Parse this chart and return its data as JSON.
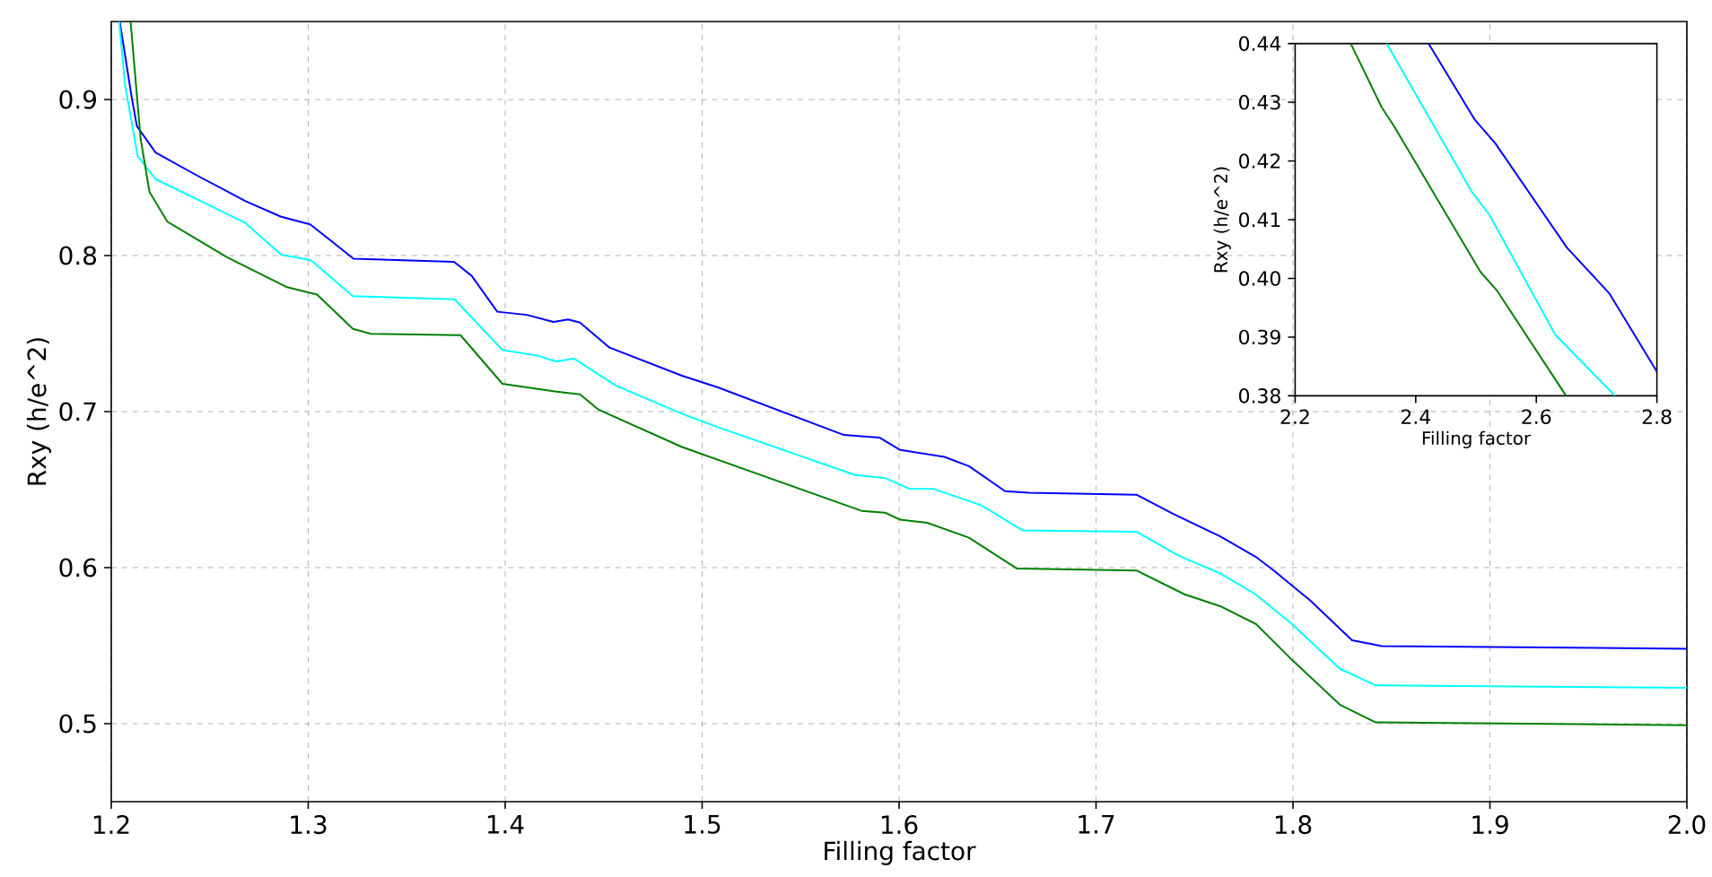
{
  "chart_data": [
    {
      "type": "line",
      "xlabel": "Filling factor",
      "ylabel": "Rxy (h/e^2)",
      "xlim": [
        1.2,
        2.0
      ],
      "ylim": [
        0.45,
        0.95
      ],
      "xticks": [
        1.2,
        1.3,
        1.4,
        1.5,
        1.6,
        1.7,
        1.8,
        1.9,
        {
          "value": 2.0,
          "label": "2.0"
        }
      ],
      "yticks": [
        0.5,
        0.6,
        0.7,
        0.8,
        0.9
      ],
      "grid": true,
      "series": [
        {
          "color": "#0000ff",
          "x": [
            1.2043,
            1.2103,
            1.213,
            1.2225,
            1.244,
            1.268,
            1.286,
            1.301,
            1.311,
            1.323,
            1.374,
            1.383,
            1.396,
            1.411,
            1.4245,
            1.432,
            1.438,
            1.453,
            1.4898,
            1.508,
            1.572,
            1.59,
            1.6006,
            1.623,
            1.6355,
            1.6538,
            1.666,
            1.7206,
            1.739,
            1.763,
            1.781,
            1.7904,
            1.8087,
            1.83,
            1.845,
            2.0
          ],
          "values": [
            0.95,
            0.902,
            0.883,
            0.866,
            0.851,
            0.835,
            0.825,
            0.82,
            0.81,
            0.798,
            0.796,
            0.787,
            0.764,
            0.762,
            0.7575,
            0.759,
            0.757,
            0.741,
            0.723,
            0.7155,
            0.685,
            0.6834,
            0.6754,
            0.671,
            0.665,
            0.649,
            0.648,
            0.6467,
            0.6345,
            0.62,
            0.607,
            0.598,
            0.579,
            0.5535,
            0.5497,
            0.548
          ]
        },
        {
          "color": "#00ffff",
          "x": [
            1.204,
            1.207,
            1.2134,
            1.2225,
            1.2437,
            1.268,
            1.2863,
            1.3014,
            1.3227,
            1.3743,
            1.3986,
            1.4169,
            1.426,
            1.435,
            1.4563,
            1.4898,
            1.508,
            1.5778,
            1.593,
            1.6052,
            1.6173,
            1.6416,
            1.6629,
            1.7206,
            1.7419,
            1.763,
            1.781,
            1.7995,
            1.8238,
            1.842,
            2.0
          ],
          "values": [
            0.95,
            0.9095,
            0.8637,
            0.849,
            0.836,
            0.821,
            0.8006,
            0.797,
            0.774,
            0.772,
            0.7395,
            0.7357,
            0.732,
            0.734,
            0.7166,
            0.6986,
            0.69,
            0.6593,
            0.6574,
            0.6505,
            0.6505,
            0.64,
            0.6238,
            0.623,
            0.6077,
            0.5963,
            0.5829,
            0.5638,
            0.5352,
            0.5245,
            0.523
          ]
        },
        {
          "color": "#008000",
          "x": [
            1.2098,
            1.2149,
            1.2194,
            1.2285,
            1.259,
            1.2893,
            1.3045,
            1.3227,
            1.3318,
            1.3773,
            1.3986,
            1.426,
            1.438,
            1.4472,
            1.4898,
            1.5809,
            1.593,
            1.6006,
            1.6143,
            1.6355,
            1.6599,
            1.7206,
            1.7449,
            1.763,
            1.7813,
            1.7995,
            1.8238,
            1.842,
            2.0
          ],
          "values": [
            0.95,
            0.875,
            0.8408,
            0.8217,
            0.7988,
            0.7797,
            0.775,
            0.753,
            0.7499,
            0.749,
            0.7178,
            0.7128,
            0.711,
            0.7014,
            0.6773,
            0.6364,
            0.6352,
            0.6307,
            0.6287,
            0.6192,
            0.5994,
            0.5982,
            0.5829,
            0.5753,
            0.5638,
            0.5409,
            0.5122,
            0.5008,
            0.499
          ]
        }
      ]
    },
    {
      "type": "line",
      "xlabel": "Filling factor",
      "ylabel": "Rxy (h/e^2)",
      "xlim": [
        2.2,
        2.8
      ],
      "ylim": [
        0.38,
        0.44
      ],
      "xticks": [
        2.2,
        2.4,
        2.6,
        2.8
      ],
      "yticks": [
        0.38,
        0.39,
        {
          "value": 0.4,
          "label": "0.40"
        },
        0.41,
        0.42,
        0.43,
        0.44
      ],
      "series": [
        {
          "color": "#0000ff",
          "x": [
            2.4212,
            2.4975,
            2.532,
            2.651,
            2.7207,
            2.8
          ],
          "values": [
            0.44,
            0.4271,
            0.423,
            0.4052,
            0.3975,
            0.3841
          ]
        },
        {
          "color": "#00ffff",
          "x": [
            2.3517,
            2.4926,
            2.5223,
            2.6314,
            2.7306
          ],
          "values": [
            0.44,
            0.4148,
            0.4108,
            0.3904,
            0.38
          ]
        },
        {
          "color": "#008000",
          "x": [
            2.2922,
            2.3438,
            2.3636,
            2.5074,
            2.5342,
            2.6493
          ],
          "values": [
            0.44,
            0.4291,
            0.426,
            0.4011,
            0.398,
            0.38
          ]
        }
      ]
    }
  ]
}
